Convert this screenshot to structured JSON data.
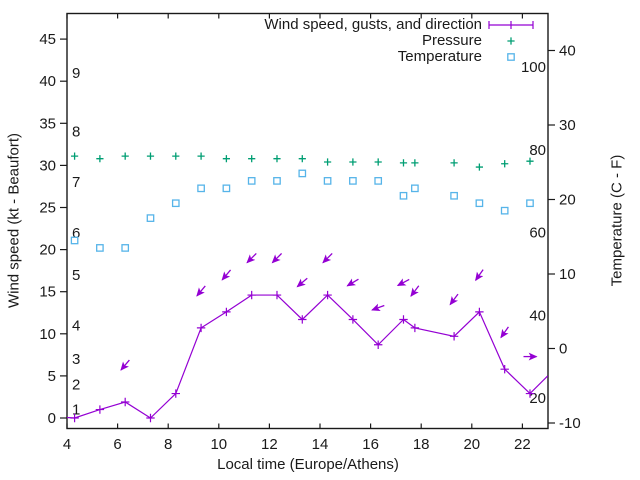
{
  "chart_data": {
    "type": "line",
    "title": "",
    "xlabel": "Local time (Europe/Athens)",
    "ylabel_left": "Wind speed (kt - Beaufort)",
    "ylabel_right": "Temperature (C - F)",
    "xlim": [
      4,
      23
    ],
    "x_ticks": [
      4,
      6,
      8,
      10,
      12,
      14,
      16,
      18,
      20,
      22
    ],
    "left_axis_ticks_kt": [
      0,
      5,
      10,
      15,
      20,
      25,
      30,
      35,
      40,
      45
    ],
    "right_axis_ticks_C": [
      -10,
      0,
      10,
      20,
      30,
      40
    ],
    "beaufort_inner_labels": [
      {
        "label": "1",
        "kt": 1
      },
      {
        "label": "2",
        "kt": 4
      },
      {
        "label": "3",
        "kt": 7
      },
      {
        "label": "4",
        "kt": 11
      },
      {
        "label": "5",
        "kt": 17
      },
      {
        "label": "6",
        "kt": 22
      },
      {
        "label": "7",
        "kt": 28
      },
      {
        "label": "8",
        "kt": 34
      },
      {
        "label": "9",
        "kt": 41
      }
    ],
    "fahrenheit_inner_labels": [
      {
        "label": "100",
        "F": 100
      },
      {
        "label": "80",
        "F": 80
      },
      {
        "label": "60",
        "F": 60
      },
      {
        "label": "40",
        "F": 40
      },
      {
        "label": "20",
        "F": 20
      }
    ],
    "grid": false,
    "legend_position": "top-right-inside",
    "legend": [
      {
        "label": "Wind speed, gusts, and direction",
        "marker": "errorbar-plus",
        "color": "#9400d3"
      },
      {
        "label": "Pressure",
        "marker": "plus",
        "color": "#009e73"
      },
      {
        "label": "Temperature",
        "marker": "open-square",
        "color": "#56b4e9"
      }
    ],
    "series": {
      "wind": {
        "name": "Wind speed, gusts, and direction",
        "color": "#9400d3",
        "t": [
          4.3,
          5.3,
          6.3,
          7.3,
          8.3,
          9.3,
          10.3,
          11.3,
          12.3,
          13.3,
          14.3,
          15.3,
          16.3,
          17.3,
          17.75,
          19.3,
          20.3,
          21.3,
          22.3
        ],
        "kt": [
          0,
          1.0,
          1.9,
          0,
          2.9,
          10.7,
          12.6,
          14.6,
          14.6,
          11.7,
          14.6,
          11.7,
          8.7,
          11.7,
          10.7,
          9.7,
          12.6,
          5.8,
          2.9
        ],
        "clip_end": {
          "t": 23.0,
          "kt": 5.0
        }
      },
      "wind_direction_arrows": [
        {
          "t": 6.3,
          "angle_deg": 130
        },
        {
          "t": 9.3,
          "angle_deg": 130
        },
        {
          "t": 10.3,
          "angle_deg": 130
        },
        {
          "t": 11.3,
          "angle_deg": 135
        },
        {
          "t": 12.3,
          "angle_deg": 135
        },
        {
          "t": 13.3,
          "angle_deg": 140
        },
        {
          "t": 14.3,
          "angle_deg": 135
        },
        {
          "t": 15.3,
          "angle_deg": 149
        },
        {
          "t": 16.3,
          "angle_deg": 160
        },
        {
          "t": 17.3,
          "angle_deg": 152
        },
        {
          "t": 17.75,
          "angle_deg": 127
        },
        {
          "t": 19.3,
          "angle_deg": 127
        },
        {
          "t": 20.3,
          "angle_deg": 125
        },
        {
          "t": 21.3,
          "angle_deg": 125
        },
        {
          "t": 22.3,
          "angle_deg": 0
        }
      ],
      "pressure": {
        "name": "Pressure",
        "color": "#009e73",
        "note": "pressure scale not labeled; markers plotted near 30-31 on the left axis",
        "t": [
          4.3,
          5.3,
          6.3,
          7.3,
          8.3,
          9.3,
          10.3,
          11.3,
          12.3,
          13.3,
          14.3,
          15.3,
          16.3,
          17.3,
          17.75,
          19.3,
          20.3,
          21.3,
          22.3
        ],
        "y_left_axis_units": [
          31.1,
          30.8,
          31.1,
          31.1,
          31.1,
          31.1,
          30.8,
          30.8,
          30.8,
          30.8,
          30.4,
          30.4,
          30.4,
          30.3,
          30.3,
          30.3,
          29.8,
          30.2,
          30.5
        ]
      },
      "temperature": {
        "name": "Temperature",
        "color": "#56b4e9",
        "t": [
          4.3,
          5.3,
          6.3,
          7.3,
          8.3,
          9.3,
          10.3,
          11.3,
          12.3,
          13.3,
          14.3,
          15.3,
          16.3,
          17.3,
          17.75,
          19.3,
          20.3,
          21.3,
          22.3
        ],
        "C": [
          14.5,
          13.5,
          13.5,
          17.5,
          19.5,
          21.5,
          21.5,
          22.5,
          22.5,
          23.5,
          22.5,
          22.5,
          22.5,
          20.5,
          21.5,
          20.5,
          19.5,
          18.5,
          19.5
        ]
      }
    }
  }
}
